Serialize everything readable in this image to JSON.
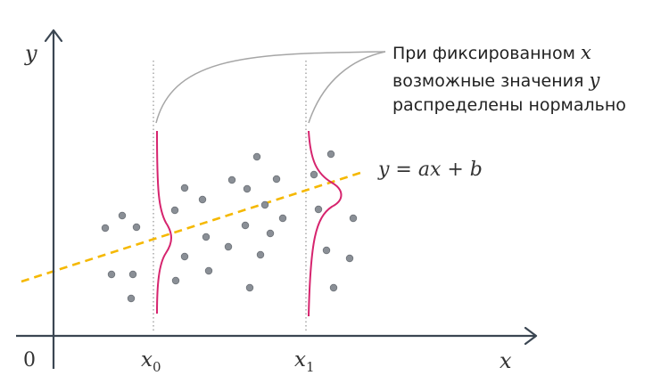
{
  "axes": {
    "y_label": "y",
    "x_label": "x",
    "origin_label": "0",
    "x0_label": "x",
    "x0_sub": "0",
    "x1_label": "x",
    "x1_sub": "1"
  },
  "regression_line": {
    "equation": "y = ax + b",
    "color": "#f5b800"
  },
  "annotation": {
    "lines": [
      {
        "text": "При фиксированном ",
        "var": "x"
      },
      {
        "text": "возможные значения ",
        "var": "y"
      },
      {
        "text": "распределены нормально",
        "var": ""
      }
    ]
  },
  "colors": {
    "axis": "#3b4652",
    "density_curve": "#d6246e",
    "points": "#8a8f96",
    "dotted_lines": "#9a9a9a",
    "connector": "#a6a6a6"
  }
}
